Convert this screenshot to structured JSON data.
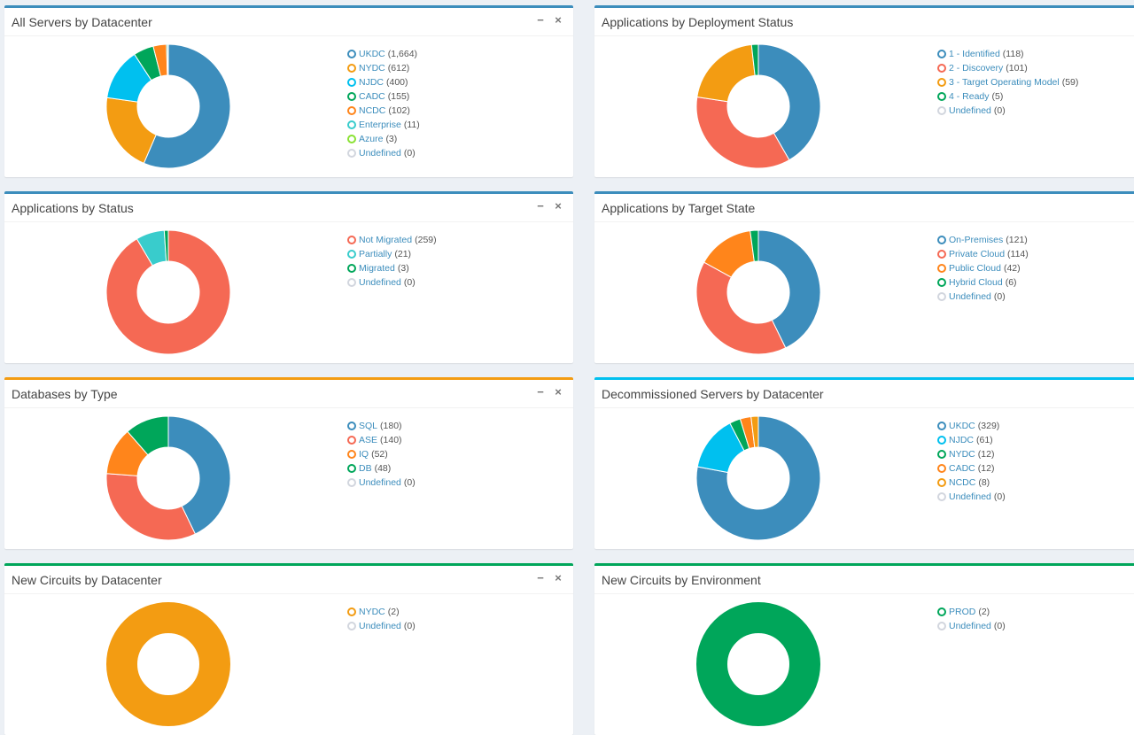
{
  "panels": [
    {
      "id": "servers-by-datacenter",
      "title": "All Servers by Datacenter",
      "border_color": "#3c8dbc",
      "chart_data": {
        "type": "pie",
        "title": "All Servers by Datacenter",
        "categories": [
          "UKDC",
          "NYDC",
          "NJDC",
          "CADC",
          "NCDC",
          "Enterprise",
          "Azure",
          "Undefined"
        ],
        "values": [
          1664,
          612,
          400,
          155,
          102,
          11,
          3,
          0
        ],
        "counts": [
          "(1,664)",
          "(612)",
          "(400)",
          "(155)",
          "(102)",
          "(11)",
          "(3)",
          "(0)"
        ],
        "colors": [
          "#3c8dbc",
          "#f39c12",
          "#00c0ef",
          "#00a65a",
          "#ff851b",
          "#39cccc",
          "#8ae234",
          "#d2d6de"
        ],
        "hole": 0.5
      }
    },
    {
      "id": "apps-by-deployment-status",
      "title": "Applications by Deployment Status",
      "border_color": "#3c8dbc",
      "chart_data": {
        "type": "pie",
        "title": "Applications by Deployment Status",
        "categories": [
          "1 - Identified",
          "2 - Discovery",
          "3 - Target Operating Model",
          "4 - Ready",
          "Undefined"
        ],
        "values": [
          118,
          101,
          59,
          5,
          0
        ],
        "counts": [
          "(118)",
          "(101)",
          "(59)",
          "(5)",
          "(0)"
        ],
        "colors": [
          "#3c8dbc",
          "#f56954",
          "#f39c12",
          "#00a65a",
          "#d2d6de"
        ],
        "hole": 0.5
      }
    },
    {
      "id": "apps-by-status",
      "title": "Applications by Status",
      "border_color": "#3c8dbc",
      "chart_data": {
        "type": "pie",
        "title": "Applications by Status",
        "categories": [
          "Not Migrated",
          "Partially",
          "Migrated",
          "Undefined"
        ],
        "values": [
          259,
          21,
          3,
          0
        ],
        "counts": [
          "(259)",
          "(21)",
          "(3)",
          "(0)"
        ],
        "colors": [
          "#f56954",
          "#39cccc",
          "#00a65a",
          "#d2d6de"
        ],
        "hole": 0.5
      }
    },
    {
      "id": "apps-by-target-state",
      "title": "Applications by Target State",
      "border_color": "#3c8dbc",
      "chart_data": {
        "type": "pie",
        "title": "Applications by Target State",
        "categories": [
          "On-Premises",
          "Private Cloud",
          "Public Cloud",
          "Hybrid Cloud",
          "Undefined"
        ],
        "values": [
          121,
          114,
          42,
          6,
          0
        ],
        "counts": [
          "(121)",
          "(114)",
          "(42)",
          "(6)",
          "(0)"
        ],
        "colors": [
          "#3c8dbc",
          "#f56954",
          "#ff851b",
          "#00a65a",
          "#d2d6de"
        ],
        "hole": 0.5
      }
    },
    {
      "id": "databases-by-type",
      "title": "Databases by Type",
      "border_color": "#f39c12",
      "chart_data": {
        "type": "pie",
        "title": "Databases by Type",
        "categories": [
          "SQL",
          "ASE",
          "IQ",
          "DB",
          "Undefined"
        ],
        "values": [
          180,
          140,
          52,
          48,
          0
        ],
        "counts": [
          "(180)",
          "(140)",
          "(52)",
          "(48)",
          "(0)"
        ],
        "colors": [
          "#3c8dbc",
          "#f56954",
          "#ff851b",
          "#00a65a",
          "#d2d6de"
        ],
        "hole": 0.5
      }
    },
    {
      "id": "decommissioned-servers",
      "title": "Decommissioned Servers by Datacenter",
      "border_color": "#00c0ef",
      "chart_data": {
        "type": "pie",
        "title": "Decommissioned Servers by Datacenter",
        "categories": [
          "UKDC",
          "NJDC",
          "NYDC",
          "CADC",
          "NCDC",
          "Undefined"
        ],
        "values": [
          329,
          61,
          12,
          12,
          8,
          0
        ],
        "counts": [
          "(329)",
          "(61)",
          "(12)",
          "(12)",
          "(8)",
          "(0)"
        ],
        "colors": [
          "#3c8dbc",
          "#00c0ef",
          "#00a65a",
          "#ff851b",
          "#f39c12",
          "#d2d6de"
        ],
        "hole": 0.5
      }
    },
    {
      "id": "new-circuits-by-datacenter",
      "title": "New Circuits by Datacenter",
      "border_color": "#00a65a",
      "chart_data": {
        "type": "pie",
        "title": "New Circuits by Datacenter",
        "categories": [
          "NYDC",
          "Undefined"
        ],
        "values": [
          2,
          0
        ],
        "counts": [
          "(2)",
          "(0)"
        ],
        "colors": [
          "#f39c12",
          "#d2d6de"
        ],
        "hole": 0.5
      }
    },
    {
      "id": "new-circuits-by-environment",
      "title": "New Circuits by Environment",
      "border_color": "#00a65a",
      "chart_data": {
        "type": "pie",
        "title": "New Circuits by Environment",
        "categories": [
          "PROD",
          "Undefined"
        ],
        "values": [
          2,
          0
        ],
        "counts": [
          "(2)",
          "(0)"
        ],
        "colors": [
          "#00a65a",
          "#d2d6de"
        ],
        "hole": 0.5
      }
    }
  ],
  "tools": {
    "minimize_label": "−",
    "close_label": "×"
  }
}
